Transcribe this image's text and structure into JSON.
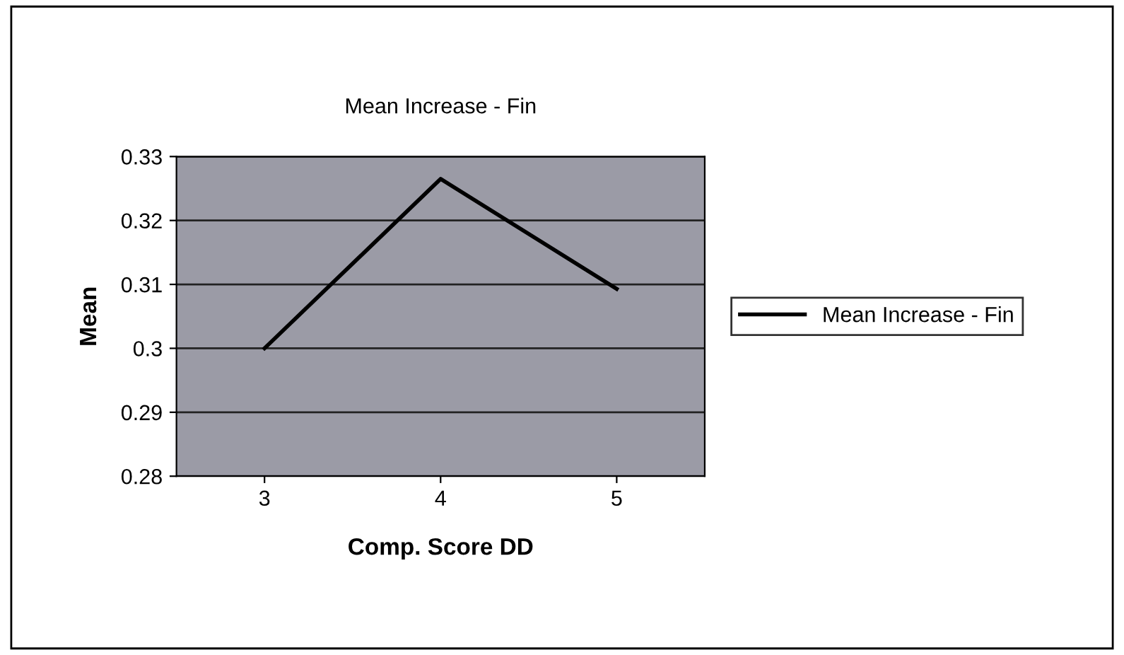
{
  "chart_data": {
    "type": "line",
    "title": "Mean Increase - Fin",
    "xlabel": "Comp. Score DD",
    "ylabel": "Mean",
    "categories": [
      "3",
      "4",
      "5"
    ],
    "series": [
      {
        "name": "Mean Increase - Fin",
        "color": "#000000",
        "values": [
          0.3,
          0.3265,
          0.3093
        ]
      }
    ],
    "ylim": [
      0.28,
      0.33
    ],
    "yticks": [
      0.28,
      0.29,
      0.3,
      0.31,
      0.32,
      0.33
    ],
    "grid": "y",
    "legend": "right",
    "marker": "none",
    "line_style": "solid"
  }
}
